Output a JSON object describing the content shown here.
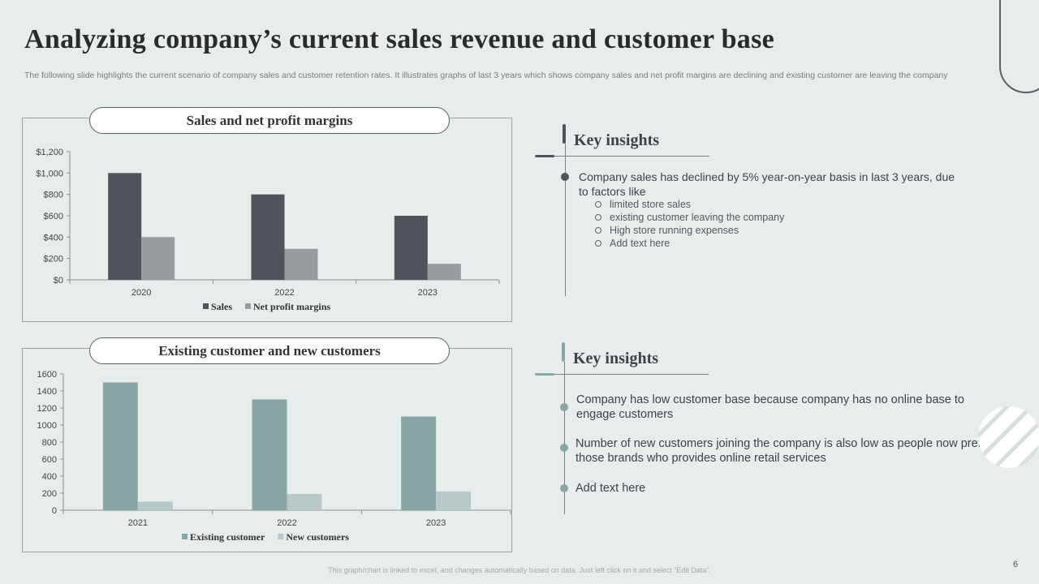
{
  "slide": {
    "title": "Analyzing company’s current sales revenue and customer base",
    "subtitle": "The following slide highlights the current scenario of company sales and customer retention rates. It illustrates graphs of last 3 years which shows company sales and net profit margins are declining and  existing customer are leaving the company",
    "footer": "This graph/chart is linked to excel, and changes automatically based on data. Just left click on it and select “Edit Data”.",
    "page_number": "6"
  },
  "colors": {
    "sales": "#4f545b",
    "net_profit": "#979ca1",
    "existing": "#8aa5a6",
    "new": "#b8c8c8",
    "accent_dark": "#4f545b",
    "accent_teal": "#8aa5a6"
  },
  "insights1": {
    "heading": "Key insights",
    "bullet": "Company sales has declined by 5% year-on-year basis in last 3 years, due to factors like",
    "sub_items": [
      "limited store sales",
      "existing customer leaving  the company",
      "High store running  expenses",
      "Add text here"
    ]
  },
  "insights2": {
    "heading": "Key insights",
    "bullets": [
      "Company has low customer base because company has no online base to engage customers",
      "Number of new customers joining the company is also low as people now prefer those brands who provides online retail services",
      "Add text here"
    ]
  },
  "chart_data": [
    {
      "type": "bar",
      "title": "Sales and net profit margins",
      "categories": [
        "2020",
        "2022",
        "2023"
      ],
      "series": [
        {
          "name": "Sales",
          "values": [
            1000,
            800,
            600
          ]
        },
        {
          "name": "Net profit margins",
          "values": [
            400,
            290,
            150
          ]
        }
      ],
      "ylim": [
        0,
        1200
      ],
      "yticks": [
        0,
        200,
        400,
        600,
        800,
        1000,
        1200
      ],
      "ytick_labels": [
        "$0",
        "$200",
        "$400",
        "$600",
        "$800",
        "$1,000",
        "$1,200"
      ],
      "legend": "bottom",
      "grid": false
    },
    {
      "type": "bar",
      "title": "Existing customer and new customers",
      "categories": [
        "2021",
        "2022",
        "2023"
      ],
      "series": [
        {
          "name": "Existing customer",
          "values": [
            1500,
            1300,
            1100
          ]
        },
        {
          "name": "New customers",
          "values": [
            100,
            190,
            220
          ]
        }
      ],
      "ylim": [
        0,
        1600
      ],
      "yticks": [
        0,
        200,
        400,
        600,
        800,
        1000,
        1200,
        1400,
        1600
      ],
      "ytick_labels": [
        "0",
        "200",
        "400",
        "600",
        "800",
        "1000",
        "1200",
        "1400",
        "1600"
      ],
      "legend": "bottom",
      "grid": false
    }
  ]
}
